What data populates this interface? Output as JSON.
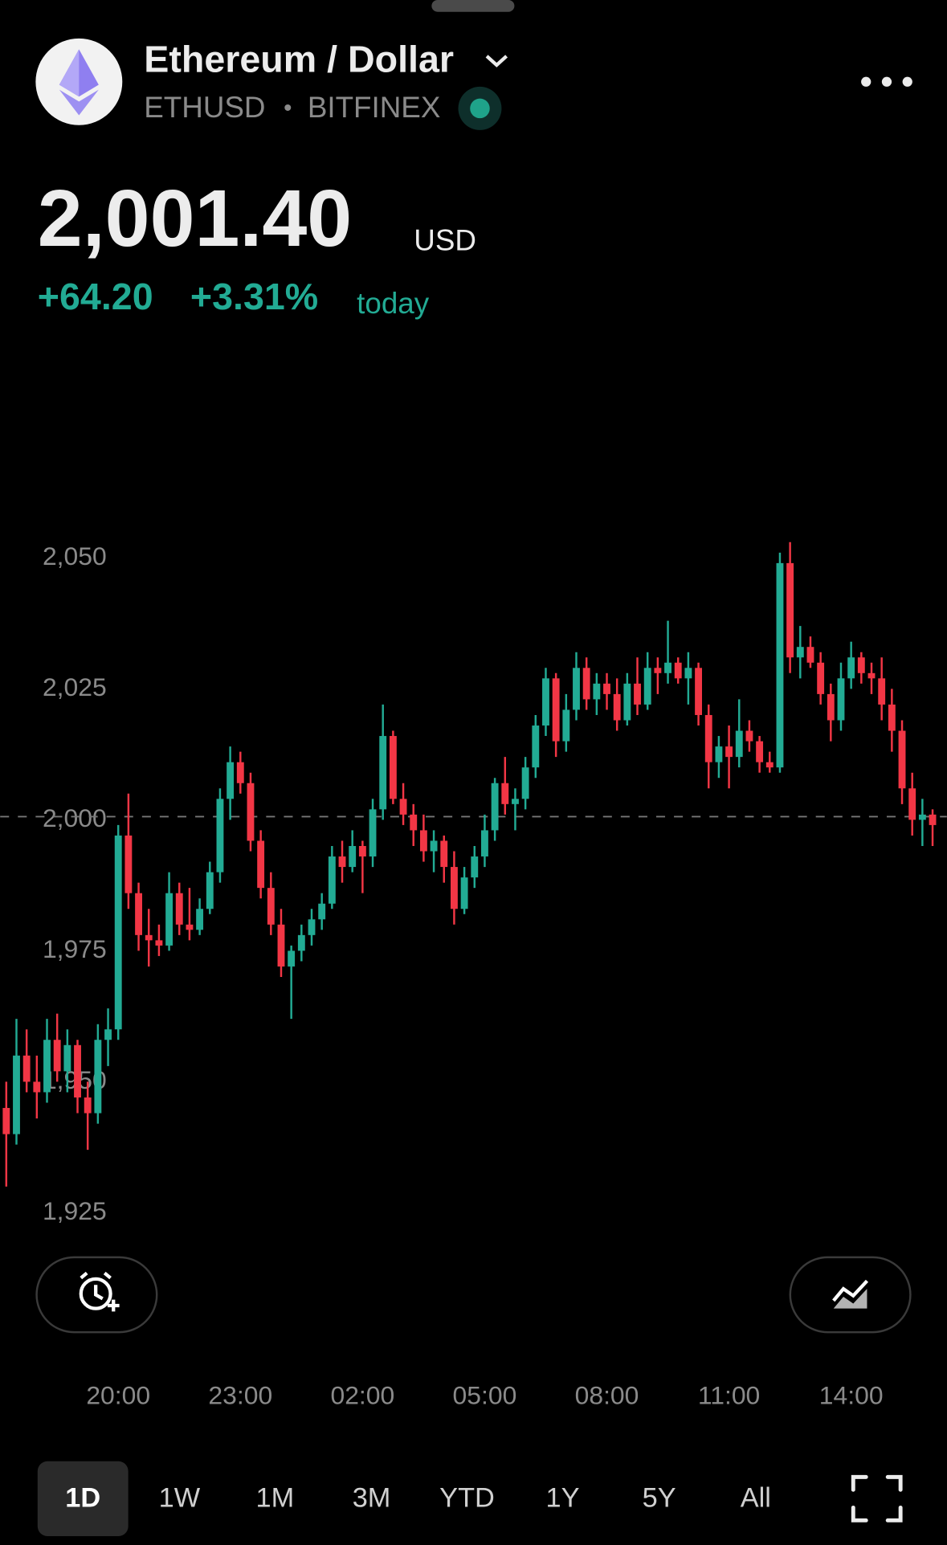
{
  "header": {
    "title": "Ethereum / Dollar",
    "symbol": "ETHUSD",
    "separator": "•",
    "exchange": "BITFINEX"
  },
  "price": {
    "value": "2,001.40",
    "currency": "USD",
    "change": "+64.20",
    "change_percent": "+3.31%",
    "period": "today"
  },
  "chart": {
    "type": "candlestick",
    "up_color": "#22ab94",
    "down_color": "#f23645",
    "xlim": [
      17.1,
      40.35
    ],
    "ylim": [
      1918,
      2060
    ],
    "yticks": [
      {
        "value": 1925,
        "label": "1,925"
      },
      {
        "value": 1950,
        "label": "1,950"
      },
      {
        "value": 1975,
        "label": "1,975"
      },
      {
        "value": 2000,
        "label": "2,000"
      },
      {
        "value": 2025,
        "label": "2,025"
      },
      {
        "value": 2050,
        "label": "2,050"
      }
    ],
    "xticks": [
      {
        "value": 20,
        "label": "20:00"
      },
      {
        "value": 23,
        "label": "23:00"
      },
      {
        "value": 26,
        "label": "02:00"
      },
      {
        "value": 29,
        "label": "05:00"
      },
      {
        "value": 32,
        "label": "08:00"
      },
      {
        "value": 35,
        "label": "11:00"
      },
      {
        "value": 38,
        "label": "14:00"
      }
    ],
    "last_price": 2000.6,
    "x": [
      17.25,
      17.5,
      17.75,
      18,
      18.25,
      18.5,
      18.75,
      19,
      19.25,
      19.5,
      19.75,
      20,
      20.25,
      20.5,
      20.75,
      21,
      21.25,
      21.5,
      21.75,
      22,
      22.25,
      22.5,
      22.75,
      23,
      23.25,
      23.5,
      23.75,
      24,
      24.25,
      24.5,
      24.75,
      25,
      25.25,
      25.5,
      25.75,
      26,
      26.25,
      26.5,
      26.75,
      27,
      27.25,
      27.5,
      27.75,
      28,
      28.25,
      28.5,
      28.75,
      29,
      29.25,
      29.5,
      29.75,
      30,
      30.25,
      30.5,
      30.75,
      31,
      31.25,
      31.5,
      31.75,
      32,
      32.25,
      32.5,
      32.75,
      33,
      33.25,
      33.5,
      33.75,
      34,
      34.25,
      34.5,
      34.75,
      35,
      35.25,
      35.5,
      35.75,
      36,
      36.25,
      36.5,
      36.75,
      37,
      37.25,
      37.5,
      37.75,
      38,
      38.25,
      38.5,
      38.75,
      39,
      39.25,
      39.5,
      39.75,
      40
    ],
    "candles": [
      [
        1945,
        1950,
        1930,
        1940
      ],
      [
        1940,
        1962,
        1938,
        1955
      ],
      [
        1955,
        1960,
        1948,
        1950
      ],
      [
        1950,
        1955,
        1943,
        1948
      ],
      [
        1948,
        1962,
        1946,
        1958
      ],
      [
        1958,
        1963,
        1950,
        1952
      ],
      [
        1952,
        1960,
        1948,
        1957
      ],
      [
        1957,
        1958,
        1944,
        1947
      ],
      [
        1947,
        1950,
        1937,
        1944
      ],
      [
        1944,
        1961,
        1942,
        1958
      ],
      [
        1958,
        1964,
        1953,
        1960
      ],
      [
        1960,
        1999,
        1958,
        1997
      ],
      [
        1997,
        2005,
        1983,
        1986
      ],
      [
        1986,
        1988,
        1975,
        1978
      ],
      [
        1978,
        1983,
        1972,
        1977
      ],
      [
        1977,
        1980,
        1974,
        1976
      ],
      [
        1976,
        1990,
        1975,
        1986
      ],
      [
        1986,
        1988,
        1978,
        1980
      ],
      [
        1980,
        1987,
        1977,
        1979
      ],
      [
        1979,
        1985,
        1978,
        1983
      ],
      [
        1983,
        1992,
        1982,
        1990
      ],
      [
        1990,
        2006,
        1988,
        2004
      ],
      [
        2004,
        2014,
        2000,
        2011
      ],
      [
        2011,
        2013,
        2005,
        2007
      ],
      [
        2007,
        2009,
        1994,
        1996
      ],
      [
        1996,
        1998,
        1985,
        1987
      ],
      [
        1987,
        1990,
        1978,
        1980
      ],
      [
        1980,
        1983,
        1970,
        1972
      ],
      [
        1972,
        1976,
        1962,
        1975
      ],
      [
        1975,
        1980,
        1973,
        1978
      ],
      [
        1978,
        1983,
        1976,
        1981
      ],
      [
        1981,
        1986,
        1979,
        1984
      ],
      [
        1984,
        1995,
        1983,
        1993
      ],
      [
        1993,
        1996,
        1988,
        1991
      ],
      [
        1991,
        1998,
        1990,
        1995
      ],
      [
        1995,
        1996,
        1986,
        1993
      ],
      [
        1993,
        2004,
        1991,
        2002
      ],
      [
        2002,
        2022,
        2000,
        2016
      ],
      [
        2016,
        2017,
        2003,
        2004
      ],
      [
        2004,
        2007,
        1999,
        2001
      ],
      [
        2001,
        2003,
        1995,
        1998
      ],
      [
        1998,
        2001,
        1992,
        1994
      ],
      [
        1994,
        1998,
        1990,
        1996
      ],
      [
        1996,
        1997,
        1988,
        1991
      ],
      [
        1991,
        1994,
        1980,
        1983
      ],
      [
        1983,
        1991,
        1982,
        1989
      ],
      [
        1989,
        1995,
        1987,
        1993
      ],
      [
        1993,
        2001,
        1991,
        1998
      ],
      [
        1998,
        2008,
        1996,
        2007
      ],
      [
        2007,
        2012,
        2001,
        2003
      ],
      [
        2003,
        2006,
        1998,
        2004
      ],
      [
        2004,
        2012,
        2002,
        2010
      ],
      [
        2010,
        2020,
        2008,
        2018
      ],
      [
        2018,
        2029,
        2016,
        2027
      ],
      [
        2027,
        2028,
        2012,
        2015
      ],
      [
        2015,
        2024,
        2013,
        2021
      ],
      [
        2021,
        2032,
        2019,
        2029
      ],
      [
        2029,
        2031,
        2021,
        2023
      ],
      [
        2023,
        2028,
        2020,
        2026
      ],
      [
        2026,
        2028,
        2021,
        2024
      ],
      [
        2024,
        2027,
        2017,
        2019
      ],
      [
        2019,
        2028,
        2018,
        2026
      ],
      [
        2026,
        2031,
        2020,
        2022
      ],
      [
        2022,
        2032,
        2021,
        2029
      ],
      [
        2029,
        2031,
        2024,
        2028
      ],
      [
        2028,
        2038,
        2026,
        2030
      ],
      [
        2030,
        2031,
        2026,
        2027
      ],
      [
        2027,
        2032,
        2022,
        2029
      ],
      [
        2029,
        2030,
        2018,
        2020
      ],
      [
        2020,
        2022,
        2006,
        2011
      ],
      [
        2011,
        2016,
        2008,
        2014
      ],
      [
        2014,
        2018,
        2006,
        2012
      ],
      [
        2012,
        2023,
        2010,
        2017
      ],
      [
        2017,
        2019,
        2013,
        2015
      ],
      [
        2015,
        2016,
        2009,
        2011
      ],
      [
        2011,
        2013,
        2009,
        2010
      ],
      [
        2010,
        2051,
        2009,
        2049
      ],
      [
        2049,
        2053,
        2028,
        2031
      ],
      [
        2031,
        2037,
        2027,
        2033
      ],
      [
        2033,
        2035,
        2029,
        2030
      ],
      [
        2030,
        2032,
        2022,
        2024
      ],
      [
        2024,
        2026,
        2015,
        2019
      ],
      [
        2019,
        2030,
        2017,
        2027
      ],
      [
        2027,
        2034,
        2025,
        2031
      ],
      [
        2031,
        2032,
        2026,
        2028
      ],
      [
        2028,
        2030,
        2024,
        2027
      ],
      [
        2027,
        2031,
        2019,
        2022
      ],
      [
        2022,
        2025,
        2013,
        2017
      ],
      [
        2017,
        2019,
        2003,
        2006
      ],
      [
        2006,
        2009,
        1997,
        2000
      ],
      [
        2000,
        2004,
        1995,
        2001
      ],
      [
        2001,
        2002,
        1995,
        1999
      ]
    ]
  },
  "timeframes": [
    "1D",
    "1W",
    "1M",
    "3M",
    "YTD",
    "1Y",
    "5Y",
    "All"
  ]
}
